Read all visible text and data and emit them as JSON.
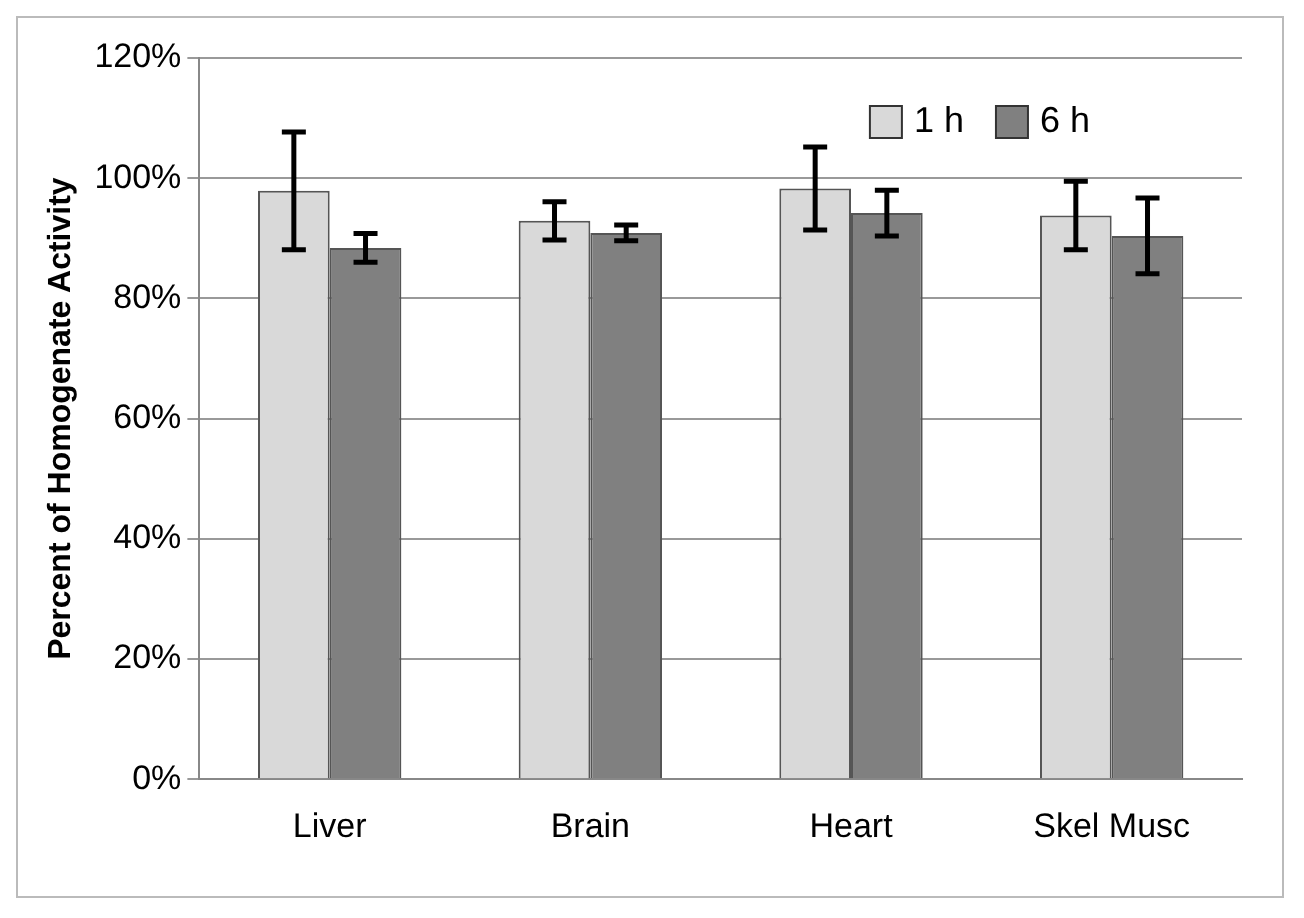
{
  "chart_data": {
    "type": "bar",
    "ylabel": "Percent of Homogenate Activity",
    "categories": [
      "Liver",
      "Brain",
      "Heart",
      "Skel Musc"
    ],
    "series": [
      {
        "name": "1 h",
        "color": "#d9d9d9",
        "values": [
          97.9,
          92.9,
          98.3,
          93.8
        ],
        "errors": [
          9.8,
          3.2,
          6.9,
          5.7
        ]
      },
      {
        "name": "6 h",
        "color": "#808080",
        "values": [
          88.4,
          90.9,
          94.2,
          90.4
        ],
        "errors": [
          2.4,
          1.3,
          3.8,
          6.3
        ]
      }
    ],
    "ylim": [
      0,
      120
    ],
    "yticks": [
      {
        "value": 0,
        "label": "0%"
      },
      {
        "value": 20,
        "label": "20%"
      },
      {
        "value": 40,
        "label": "40%"
      },
      {
        "value": 60,
        "label": "60%"
      },
      {
        "value": 80,
        "label": "80%"
      },
      {
        "value": 100,
        "label": "100%"
      },
      {
        "value": 120,
        "label": "120%"
      }
    ],
    "grid": "y",
    "legend": "top right"
  }
}
